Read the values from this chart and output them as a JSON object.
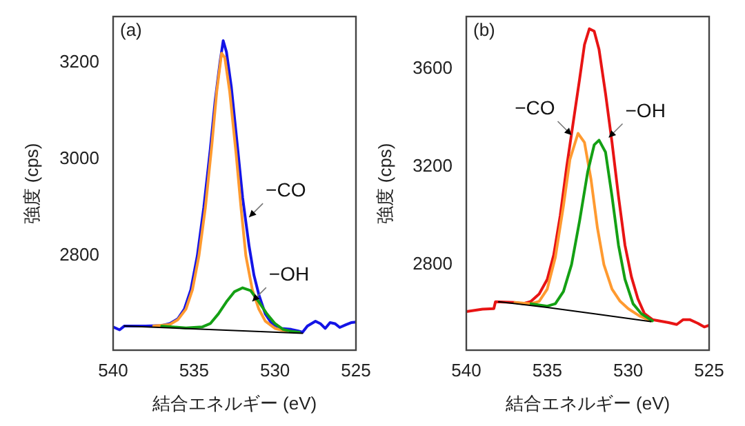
{
  "chart_data": [
    {
      "type": "line",
      "title": "(a)",
      "xlabel": "結合エネルギー (eV)",
      "ylabel": "強度 (cps)",
      "xlim": [
        540,
        525
      ],
      "ylim": [
        2605,
        3295
      ],
      "xticks": [
        540,
        535,
        530,
        525
      ],
      "yticks": [
        2800,
        3000,
        3200
      ],
      "series": [
        {
          "color": "#1414e6",
          "x": [
            540,
            539.6,
            539.3,
            538,
            537,
            536.5,
            536,
            535.6,
            535.2,
            534.8,
            534.4,
            534,
            533.7,
            533.4,
            533.2,
            533,
            532.7,
            532.3,
            532,
            531.6,
            531.3,
            531,
            530.6,
            530.2,
            529.6,
            529,
            528.6,
            528.3,
            528,
            527.5,
            527.2,
            526.9,
            526.6,
            526.3,
            526,
            525.6,
            525.3,
            525
          ],
          "values": [
            2653,
            2647,
            2655,
            2655,
            2656,
            2660,
            2670,
            2690,
            2730,
            2800,
            2900,
            3020,
            3120,
            3200,
            3245,
            3222,
            3150,
            3020,
            2920,
            2820,
            2760,
            2720,
            2680,
            2660,
            2650,
            2648,
            2645,
            2642,
            2655,
            2665,
            2660,
            2650,
            2662,
            2660,
            2652,
            2658,
            2662,
            2663
          ]
        },
        {
          "color": "#ff9a30",
          "x": [
            537.5,
            536.5,
            536,
            535.5,
            535.1,
            534.7,
            534.3,
            533.9,
            533.6,
            533.3,
            533.1,
            532.8,
            532.4,
            532.1,
            531.8,
            531.4,
            531,
            530.6,
            530,
            529.3
          ],
          "values": [
            2655,
            2658,
            2668,
            2690,
            2730,
            2800,
            2900,
            3030,
            3140,
            3219,
            3210,
            3140,
            3010,
            2900,
            2800,
            2730,
            2690,
            2665,
            2650,
            2644
          ]
        },
        {
          "color": "#14a014",
          "x": [
            537,
            535.5,
            534.5,
            534,
            533.5,
            533,
            532.5,
            532,
            531.5,
            531,
            530.5,
            530,
            529.5,
            529,
            528.5
          ],
          "values": [
            2655,
            2651,
            2653,
            2660,
            2680,
            2705,
            2726,
            2734,
            2728,
            2705,
            2680,
            2660,
            2648,
            2644,
            2642
          ]
        },
        {
          "color": "#000000",
          "x": [
            539.3,
            528.3
          ],
          "values": [
            2655,
            2640
          ]
        }
      ],
      "annotations": [
        {
          "text": "−CO",
          "x": 531.6,
          "y": 2880
        },
        {
          "text": "−OH",
          "x": 531.4,
          "y": 2706
        }
      ]
    },
    {
      "type": "line",
      "title": "(b)",
      "xlabel": "結合エネルギー (eV)",
      "ylabel": "強度 (cps)",
      "xlim": [
        540,
        525
      ],
      "ylim": [
        2450,
        3815
      ],
      "xticks": [
        540,
        535,
        530,
        525
      ],
      "yticks": [
        2800,
        3200,
        3600
      ],
      "series": [
        {
          "color": "#e81414",
          "x": [
            540,
            539,
            538.3,
            538.2,
            537,
            536.5,
            536,
            535.5,
            535,
            534.6,
            534.2,
            533.8,
            533.4,
            533,
            532.7,
            532.4,
            532.1,
            531.8,
            531.4,
            531,
            530.6,
            530.2,
            529.8,
            529.4,
            529,
            528.5,
            527.5,
            527,
            526.6,
            526.2,
            525.7,
            525.3,
            525
          ],
          "values": [
            2608,
            2618,
            2620,
            2648,
            2645,
            2640,
            2650,
            2680,
            2740,
            2840,
            3000,
            3200,
            3380,
            3560,
            3700,
            3765,
            3755,
            3680,
            3500,
            3300,
            3080,
            2880,
            2750,
            2660,
            2600,
            2575,
            2563,
            2555,
            2575,
            2575,
            2560,
            2545,
            2552
          ]
        },
        {
          "color": "#ff9a30",
          "x": [
            537,
            536,
            535.5,
            535,
            534.5,
            534,
            533.6,
            533.1,
            532.7,
            532.3,
            531.9,
            531.5,
            531,
            530.5,
            530,
            529.3,
            528.6
          ],
          "values": [
            2645,
            2640,
            2650,
            2700,
            2830,
            3040,
            3230,
            3337,
            3300,
            3150,
            2950,
            2800,
            2700,
            2650,
            2620,
            2590,
            2570
          ]
        },
        {
          "color": "#14a014",
          "x": [
            536,
            535,
            534.5,
            534,
            533.5,
            533,
            532.5,
            532.1,
            531.8,
            531.4,
            531,
            530.6,
            530.2,
            529.7,
            529.2,
            528.5
          ],
          "values": [
            2640,
            2630,
            2640,
            2690,
            2800,
            2980,
            3180,
            3290,
            3309,
            3260,
            3080,
            2880,
            2740,
            2640,
            2600,
            2570
          ]
        },
        {
          "color": "#000000",
          "x": [
            538,
            535,
            532,
            528.6
          ],
          "values": [
            2648,
            2625,
            2598,
            2567
          ]
        }
      ],
      "annotations": [
        {
          "text": "−CO",
          "x": 533.5,
          "y": 3330
        },
        {
          "text": "−OH",
          "x": 531.2,
          "y": 3320
        }
      ]
    }
  ]
}
